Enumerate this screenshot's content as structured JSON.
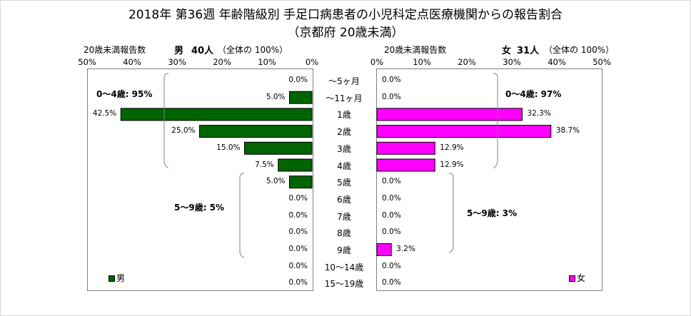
{
  "title_line1": "2018年 第36週 年齢階級別 手足口病患者の小児科定点医療機関からの報告割合",
  "title_line2": "（京都府 20歳未満）",
  "male_header": {
    "caption": "20歳未満報告数",
    "sex": "男",
    "count": "40人",
    "note": "（全体の 100%）"
  },
  "female_header": {
    "caption": "20歳未満報告数",
    "sex": "女",
    "count": "31人",
    "note": "（全体の 100%）"
  },
  "male_ticks": [
    "50%",
    "40%",
    "30%",
    "20%",
    "10%",
    "0%"
  ],
  "female_ticks": [
    "0%",
    "10%",
    "20%",
    "30%",
    "40%",
    "50%"
  ],
  "male_groups": [
    {
      "label": "0～4歳: 95%"
    },
    {
      "label": "5～9歳: 5%"
    }
  ],
  "female_groups": [
    {
      "label": "0～4歳: 97%"
    },
    {
      "label": "5～9歳: 3%"
    }
  ],
  "legend": {
    "male": "男",
    "female": "女"
  },
  "colors": {
    "male": "#006400",
    "female": "#ff00ff",
    "bar_border": "#000000",
    "axis_box": "#808080"
  },
  "chart_data": {
    "type": "bar",
    "orientation": "horizontal-back-to-back",
    "categories": [
      "～5ヶ月",
      "～11ヶ月",
      "1歳",
      "2歳",
      "3歳",
      "4歳",
      "5歳",
      "6歳",
      "7歳",
      "8歳",
      "9歳",
      "10～14歳",
      "15～19歳"
    ],
    "series": [
      {
        "name": "男",
        "values": [
          0.0,
          5.0,
          42.5,
          25.0,
          15.0,
          7.5,
          5.0,
          0.0,
          0.0,
          0.0,
          0.0,
          0.0,
          0.0
        ],
        "labels": [
          "0.0%",
          "5.0%",
          "42.5%",
          "25.0%",
          "15.0%",
          "7.5%",
          "5.0%",
          "0.0%",
          "0.0%",
          "0.0%",
          "0.0%",
          "0.0%",
          "0.0%"
        ]
      },
      {
        "name": "女",
        "values": [
          0.0,
          0.0,
          32.3,
          38.7,
          12.9,
          12.9,
          0.0,
          0.0,
          0.0,
          0.0,
          3.2,
          0.0,
          0.0
        ],
        "labels": [
          "0.0%",
          "0.0%",
          "32.3%",
          "38.7%",
          "12.9%",
          "12.9%",
          "0.0%",
          "0.0%",
          "0.0%",
          "0.0%",
          "3.2%",
          "0.0%",
          "0.0%"
        ]
      }
    ],
    "xlim": [
      0,
      50
    ],
    "legend_position": "bottom-left / bottom-right"
  }
}
